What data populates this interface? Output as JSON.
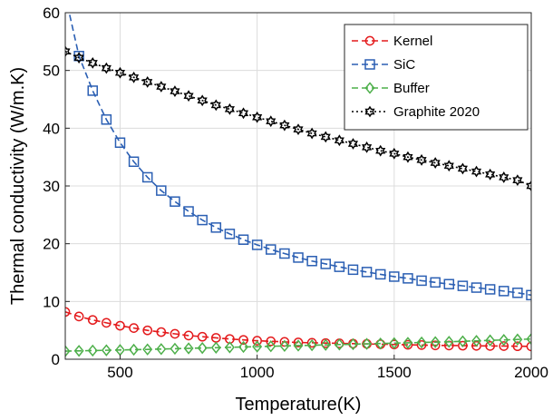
{
  "chart_data": {
    "type": "line",
    "title": "",
    "xlabel": "Temperature(K)",
    "ylabel": "Thermal conductivity (W/m.K)",
    "xlim": [
      300,
      2000
    ],
    "ylim": [
      0,
      60
    ],
    "xticks": [
      500,
      1000,
      1500,
      2000
    ],
    "yticks": [
      0,
      10,
      20,
      30,
      40,
      50,
      60
    ],
    "grid": true,
    "legend_position": "top-right",
    "x": [
      300,
      350,
      400,
      450,
      500,
      550,
      600,
      650,
      700,
      750,
      800,
      850,
      900,
      950,
      1000,
      1050,
      1100,
      1150,
      1200,
      1250,
      1300,
      1350,
      1400,
      1450,
      1500,
      1550,
      1600,
      1650,
      1700,
      1750,
      1800,
      1850,
      1900,
      1950,
      2000
    ],
    "series": [
      {
        "name": "Kernel",
        "color": "#e41a1c",
        "marker": "circle",
        "line": "dashed",
        "values": [
          8.2,
          7.4,
          6.8,
          6.3,
          5.8,
          5.4,
          5.0,
          4.7,
          4.4,
          4.1,
          3.9,
          3.7,
          3.5,
          3.35,
          3.2,
          3.1,
          3.0,
          2.9,
          2.85,
          2.8,
          2.75,
          2.7,
          2.65,
          2.6,
          2.55,
          2.5,
          2.45,
          2.4,
          2.38,
          2.35,
          2.32,
          2.3,
          2.28,
          2.25,
          2.22
        ]
      },
      {
        "name": "SiC",
        "color": "#2b5fb3",
        "marker": "square",
        "line": "dashed",
        "values": [
          63.0,
          52.5,
          46.5,
          41.5,
          37.5,
          34.2,
          31.5,
          29.2,
          27.3,
          25.6,
          24.1,
          22.8,
          21.7,
          20.7,
          19.8,
          19.0,
          18.3,
          17.6,
          17.0,
          16.5,
          16.0,
          15.5,
          15.1,
          14.7,
          14.3,
          14.0,
          13.6,
          13.3,
          13.0,
          12.7,
          12.4,
          12.1,
          11.8,
          11.5,
          11.1
        ]
      },
      {
        "name": "Buffer",
        "color": "#4daf4a",
        "marker": "diamond",
        "line": "dashed",
        "values": [
          1.4,
          1.45,
          1.5,
          1.55,
          1.6,
          1.65,
          1.7,
          1.76,
          1.82,
          1.88,
          1.94,
          2.0,
          2.06,
          2.12,
          2.18,
          2.24,
          2.3,
          2.36,
          2.42,
          2.48,
          2.54,
          2.6,
          2.66,
          2.72,
          2.78,
          2.84,
          2.9,
          2.96,
          3.02,
          3.1,
          3.18,
          3.26,
          3.34,
          3.42,
          3.5
        ]
      },
      {
        "name": "Graphite 2020",
        "color": "#000000",
        "marker": "hexagram",
        "line": "dotted",
        "values": [
          53.3,
          52.2,
          51.3,
          50.4,
          49.6,
          48.8,
          48.0,
          47.2,
          46.4,
          45.6,
          44.8,
          44.0,
          43.3,
          42.6,
          41.9,
          41.2,
          40.5,
          39.8,
          39.1,
          38.5,
          37.9,
          37.3,
          36.7,
          36.1,
          35.6,
          35.0,
          34.5,
          34.0,
          33.5,
          33.0,
          32.5,
          32.0,
          31.5,
          31.0,
          30.0
        ]
      }
    ]
  }
}
